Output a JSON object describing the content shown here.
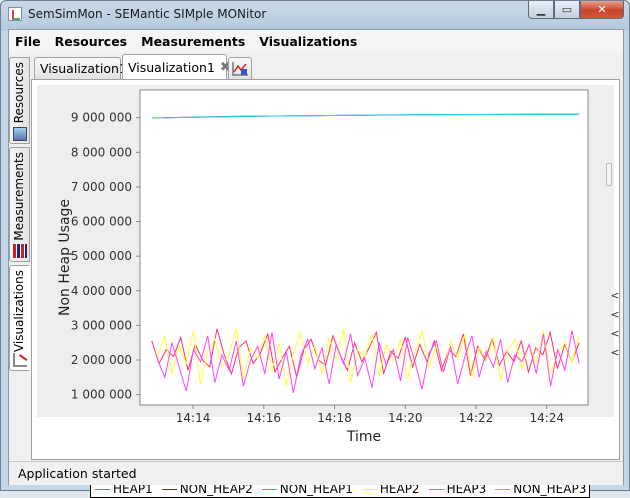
{
  "window": {
    "title": "SemSimMon - SEMantic SIMple MONitor",
    "min_icon": "minimize-icon",
    "max_icon": "maximize-icon",
    "close_icon": "close-icon"
  },
  "menu": [
    "File",
    "Resources",
    "Measurements",
    "Visualizations"
  ],
  "side_tabs": [
    {
      "label": "Resources",
      "icon": "resources-icon"
    },
    {
      "label": "Measurements",
      "icon": "measurements-icon"
    },
    {
      "label": "Visualizations",
      "icon": "visualizations-icon"
    }
  ],
  "tabs": [
    {
      "label": "Visualization1",
      "active": false
    },
    {
      "label": "Visualization1",
      "active": true
    }
  ],
  "status": "Application started",
  "chart_data": {
    "type": "line",
    "title": "",
    "xlabel": "Time",
    "ylabel": "Non Heap Usage",
    "x_ticks": [
      "14:14",
      "14:16",
      "14:18",
      "14:20",
      "14:22",
      "14:24"
    ],
    "y_ticks": [
      "1 000 000",
      "2 000 000",
      "3 000 000",
      "4 000 000",
      "5 000 000",
      "6 000 000",
      "7 000 000",
      "8 000 000",
      "9 000 000"
    ],
    "ylim": [
      700000,
      9800000
    ],
    "xlim": [
      "14:12:30",
      "14:25:10"
    ],
    "grid": false,
    "legend_position": "bottom",
    "series": [
      {
        "name": "HEAP1",
        "color": "#ff3366",
        "x_range": [
          "14:12:50",
          "14:24:55"
        ],
        "values_min": 1200000,
        "values_max": 3000000,
        "values": [
          2550000,
          1900000,
          2300000,
          2100000,
          2650000,
          1700000,
          2450000,
          2000000,
          1800000,
          2900000,
          2150000,
          1600000,
          2350000,
          2550000,
          1900000,
          2200000,
          2750000,
          1650000,
          2050000,
          2400000,
          1500000,
          2300000,
          2600000,
          2000000,
          1850000,
          2700000,
          2150000,
          1700000,
          2500000,
          1950000,
          2350000,
          2800000,
          1600000,
          2250000,
          2050000,
          2650000,
          1800000,
          2450000,
          1950000,
          2550000,
          1700000,
          2300000,
          2100000,
          2750000,
          1550000,
          2400000,
          2000000,
          2600000,
          1850000,
          2250000,
          1950000,
          2550000,
          1650000,
          2350000,
          2150000,
          2800000,
          1750000,
          2450000,
          1950000,
          2500000
        ]
      },
      {
        "name": "NON_HEAP2",
        "color": "#333399",
        "x_range": [
          "14:13:10",
          "14:24:55"
        ],
        "values": [
          9000000,
          9020000,
          9040000,
          9050000,
          9060000,
          9070000,
          9080000,
          9085000,
          9090000,
          9095000,
          9100000,
          9100000
        ]
      },
      {
        "name": "NON_HEAP1",
        "color": "#33cc66",
        "x_range": [
          "14:12:50",
          "14:24:55"
        ],
        "values": [
          8990000,
          9010000,
          9030000,
          9045000,
          9055000,
          9065000,
          9075000,
          9085000,
          9090000,
          9095000,
          9100000,
          9105000
        ]
      },
      {
        "name": "HEAP2",
        "color": "#ffff33",
        "x_range": [
          "14:13:00",
          "14:24:55"
        ],
        "values_min": 1100000,
        "values_max": 2950000,
        "values": [
          2100000,
          2700000,
          1600000,
          2400000,
          1900000,
          2850000,
          1300000,
          2250000,
          2600000,
          1800000,
          2150000,
          2900000,
          1450000,
          2350000,
          2050000,
          2700000,
          1700000,
          2500000,
          1250000,
          2200000,
          2800000,
          1900000,
          2400000,
          1600000,
          2650000,
          2000000,
          2900000,
          1350000,
          2300000,
          2100000,
          2750000,
          1550000,
          2450000,
          1950000,
          2600000,
          1450000,
          2250000,
          2850000,
          1800000,
          2400000,
          1650000,
          2550000,
          2050000,
          2750000,
          1500000,
          2350000,
          2000000,
          2650000,
          1400000,
          2300000,
          2600000,
          1750000,
          2450000,
          1900000,
          2850000,
          1600000,
          2200000,
          2500000,
          1950000,
          2700000
        ]
      },
      {
        "name": "HEAP3",
        "color": "#ff44ff",
        "x_range": [
          "14:13:00",
          "14:24:55"
        ],
        "values_min": 950000,
        "values_max": 2850000,
        "values": [
          2000000,
          1500000,
          2500000,
          1800000,
          1100000,
          2300000,
          1950000,
          2700000,
          1350000,
          2150000,
          1700000,
          2550000,
          1250000,
          2000000,
          2400000,
          1600000,
          2800000,
          1450000,
          2250000,
          1050000,
          2100000,
          2600000,
          1750000,
          2350000,
          1300000,
          2450000,
          1900000,
          2750000,
          1550000,
          2050000,
          1200000,
          2500000,
          1850000,
          2300000,
          1400000,
          2650000,
          1950000,
          1150000,
          2200000,
          2550000,
          1650000,
          2400000,
          1300000,
          2100000,
          2700000,
          1500000,
          2250000,
          1800000,
          2600000,
          1350000,
          2150000,
          1950000,
          2450000,
          1600000,
          2750000,
          1250000,
          2300000,
          1700000,
          2850000,
          1900000
        ]
      },
      {
        "name": "NON_HEAP3",
        "color": "#33ccff",
        "x_range": [
          "14:13:10",
          "14:24:55"
        ],
        "values": [
          9000000,
          9015000,
          9035000,
          9048000,
          9058000,
          9068000,
          9078000,
          9086000,
          9091000,
          9096000,
          9100000,
          9102000
        ]
      }
    ]
  }
}
